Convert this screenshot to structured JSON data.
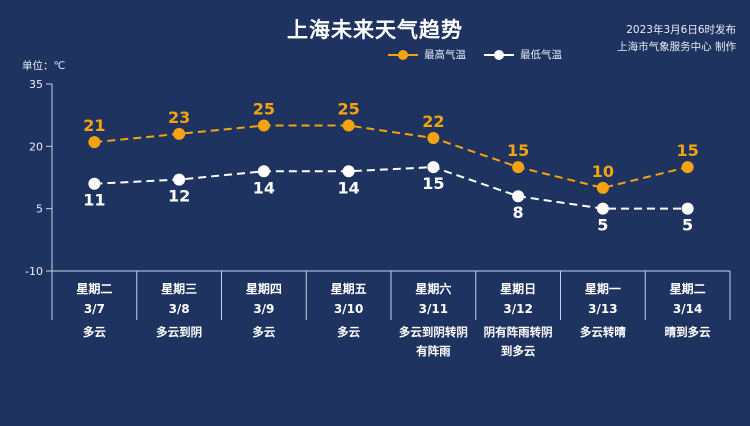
{
  "title": "上海未来天气趋势",
  "publish_time": "2023年3月6日6时发布",
  "publisher": "上海市气象服务中心 制作",
  "unit_label": "单位：℃",
  "colors": {
    "background": "#1f3361",
    "high": "#f5a30f",
    "low": "#ffffff",
    "axis": "#c9d2e6"
  },
  "days": [
    {
      "weekday": "星期二",
      "date": "3/7",
      "weather": [
        "多云"
      ]
    },
    {
      "weekday": "星期三",
      "date": "3/8",
      "weather": [
        "多云到阴"
      ]
    },
    {
      "weekday": "星期四",
      "date": "3/9",
      "weather": [
        "多云"
      ]
    },
    {
      "weekday": "星期五",
      "date": "3/10",
      "weather": [
        "多云"
      ]
    },
    {
      "weekday": "星期六",
      "date": "3/11",
      "weather": [
        "多云到阴转阴",
        "有阵雨"
      ]
    },
    {
      "weekday": "星期日",
      "date": "3/12",
      "weather": [
        "阴有阵雨转阴",
        "到多云"
      ]
    },
    {
      "weekday": "星期一",
      "date": "3/13",
      "weather": [
        "多云转晴"
      ]
    },
    {
      "weekday": "星期二",
      "date": "3/14",
      "weather": [
        "晴到多云"
      ]
    }
  ],
  "chart_data": {
    "type": "line",
    "title": "上海未来天气趋势",
    "ylabel": "单位：℃",
    "ylim": [
      -10,
      35
    ],
    "yticks": [
      -10,
      5,
      20,
      35
    ],
    "categories": [
      "3/7",
      "3/8",
      "3/9",
      "3/10",
      "3/11",
      "3/12",
      "3/13",
      "3/14"
    ],
    "legend_position": "top-right",
    "series": [
      {
        "name": "最高气温",
        "values": [
          21,
          23,
          25,
          25,
          22,
          15,
          10,
          15
        ],
        "color": "#f5a30f"
      },
      {
        "name": "最低气温",
        "values": [
          11,
          12,
          14,
          14,
          15,
          8,
          5,
          5
        ],
        "color": "#ffffff"
      }
    ]
  }
}
